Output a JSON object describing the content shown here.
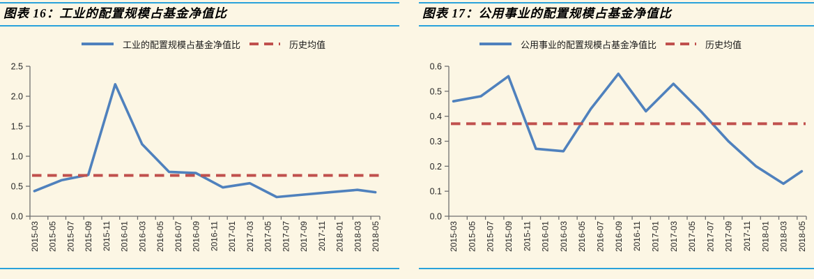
{
  "page": {
    "background_color": "#fcf6e4",
    "rule_color": "#29a2db",
    "axis_color": "#6e6e6e",
    "label_color": "#262626"
  },
  "chart_data": [
    {
      "type": "line",
      "title": "图表 16：工业的配置规模占基金净值比",
      "legend": [
        "工业的配置规模占基金净值比",
        "历史均值"
      ],
      "legend_position": "top",
      "grid": false,
      "ylim": [
        0.0,
        2.5
      ],
      "y_tick_step": 0.5,
      "y_tick_labels": [
        "0.0",
        "0.5",
        "1.0",
        "1.5",
        "2.0",
        "2.5"
      ],
      "x_tick_labels": [
        "2015-03",
        "2015-05",
        "2015-07",
        "2015-09",
        "2015-11",
        "2016-01",
        "2016-03",
        "2016-05",
        "2016-07",
        "2016-09",
        "2016-11",
        "2017-01",
        "2017-03",
        "2017-05",
        "2017-07",
        "2017-09",
        "2017-11",
        "2018-01",
        "2018-03",
        "2018-05"
      ],
      "x_start_month": "2015-03",
      "x_end_month": "2018-05",
      "x_months_total": 39,
      "series": [
        {
          "name": "工业的配置规模占基金净值比",
          "style": "solid",
          "color": "#4f81bd",
          "points": [
            {
              "month": "2015-03",
              "value": 0.42
            },
            {
              "month": "2015-06",
              "value": 0.6
            },
            {
              "month": "2015-09",
              "value": 0.69
            },
            {
              "month": "2015-12",
              "value": 2.2
            },
            {
              "month": "2016-03",
              "value": 1.2
            },
            {
              "month": "2016-06",
              "value": 0.74
            },
            {
              "month": "2016-09",
              "value": 0.72
            },
            {
              "month": "2016-12",
              "value": 0.48
            },
            {
              "month": "2017-03",
              "value": 0.55
            },
            {
              "month": "2017-06",
              "value": 0.32
            },
            {
              "month": "2017-09",
              "value": 0.36
            },
            {
              "month": "2017-12",
              "value": 0.4
            },
            {
              "month": "2018-03",
              "value": 0.44
            },
            {
              "month": "2018-05",
              "value": 0.4
            }
          ]
        },
        {
          "name": "历史均值",
          "style": "dashed",
          "color": "#c0504d",
          "constant_value": 0.68
        }
      ]
    },
    {
      "type": "line",
      "title": "图表 17：公用事业的配置规模占基金净值比",
      "legend": [
        "公用事业的配置规模占基金净值比",
        "历史均值"
      ],
      "legend_position": "top",
      "grid": false,
      "ylim": [
        0.0,
        0.6
      ],
      "y_tick_step": 0.1,
      "y_tick_labels": [
        "0.0",
        "0.1",
        "0.2",
        "0.3",
        "0.4",
        "0.5",
        "0.6"
      ],
      "x_tick_labels": [
        "2015-03",
        "2015-05",
        "2015-07",
        "2015-09",
        "2015-11",
        "2016-01",
        "2016-03",
        "2016-05",
        "2016-07",
        "2016-09",
        "2016-11",
        "2017-01",
        "2017-03",
        "2017-05",
        "2017-07",
        "2017-09",
        "2017-11",
        "2018-01",
        "2018-03",
        "2018-05"
      ],
      "x_start_month": "2015-03",
      "x_end_month": "2018-05",
      "x_months_total": 39,
      "series": [
        {
          "name": "公用事业的配置规模占基金净值比",
          "style": "solid",
          "color": "#4f81bd",
          "points": [
            {
              "month": "2015-03",
              "value": 0.46
            },
            {
              "month": "2015-06",
              "value": 0.48
            },
            {
              "month": "2015-09",
              "value": 0.56
            },
            {
              "month": "2015-12",
              "value": 0.27
            },
            {
              "month": "2016-03",
              "value": 0.26
            },
            {
              "month": "2016-06",
              "value": 0.43
            },
            {
              "month": "2016-09",
              "value": 0.57
            },
            {
              "month": "2016-12",
              "value": 0.42
            },
            {
              "month": "2017-03",
              "value": 0.53
            },
            {
              "month": "2017-06",
              "value": 0.42
            },
            {
              "month": "2017-09",
              "value": 0.3
            },
            {
              "month": "2017-12",
              "value": 0.2
            },
            {
              "month": "2018-03",
              "value": 0.13
            },
            {
              "month": "2018-05",
              "value": 0.18
            }
          ]
        },
        {
          "name": "历史均值",
          "style": "dashed",
          "color": "#c0504d",
          "constant_value": 0.37
        }
      ]
    }
  ]
}
